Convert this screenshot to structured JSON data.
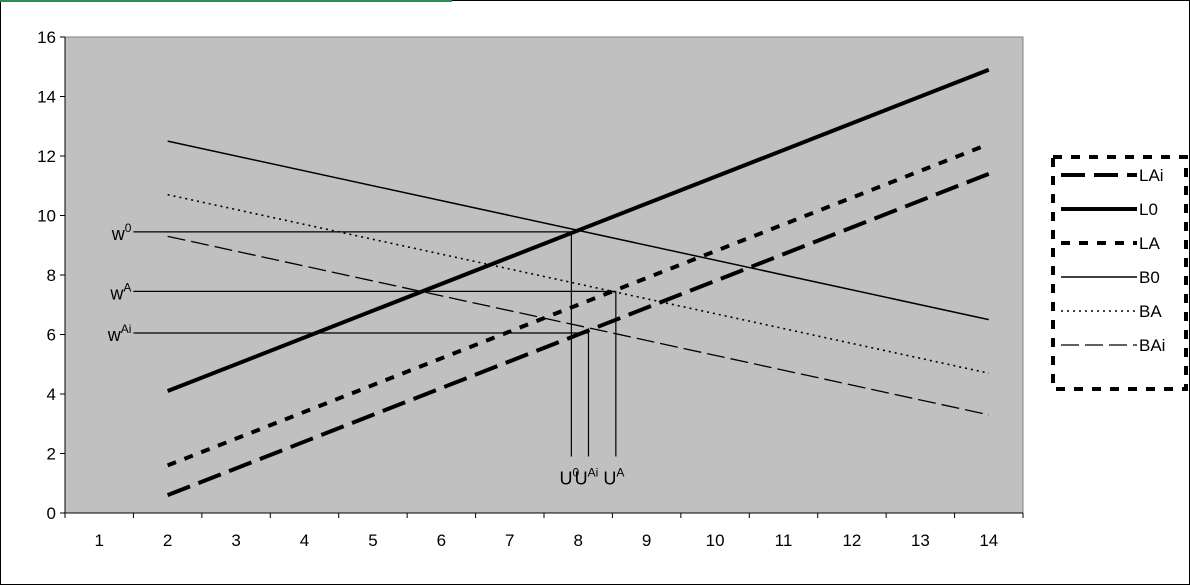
{
  "chart_data": {
    "type": "line",
    "x_categories": [
      "1",
      "2",
      "3",
      "4",
      "5",
      "6",
      "7",
      "8",
      "9",
      "10",
      "11",
      "12",
      "13",
      "14"
    ],
    "xlim": [
      1,
      14
    ],
    "ylim": [
      0,
      16
    ],
    "y_ticks": [
      "0",
      "2",
      "4",
      "6",
      "8",
      "10",
      "12",
      "14",
      "16"
    ],
    "grid": false,
    "plot_background": "#c0c0c0",
    "legend_position": "right",
    "series": [
      {
        "name": "LAi",
        "style": "long-dash-thick",
        "color": "#000000",
        "x": [
          2,
          14
        ],
        "y": [
          0.6,
          11.4
        ]
      },
      {
        "name": "L0",
        "style": "solid-thick",
        "color": "#000000",
        "x": [
          2,
          14
        ],
        "y": [
          4.1,
          14.9
        ]
      },
      {
        "name": "LA",
        "style": "short-dash-thick",
        "color": "#000000",
        "x": [
          2,
          14
        ],
        "y": [
          1.6,
          12.4
        ]
      },
      {
        "name": "B0",
        "style": "solid-thin",
        "color": "#000000",
        "x": [
          2,
          14
        ],
        "y": [
          12.5,
          6.5
        ]
      },
      {
        "name": "BA",
        "style": "dotted",
        "color": "#000000",
        "x": [
          2,
          14
        ],
        "y": [
          10.7,
          4.7
        ]
      },
      {
        "name": "BAi",
        "style": "dashed-thin",
        "color": "#000000",
        "x": [
          2,
          14
        ],
        "y": [
          9.3,
          3.3
        ]
      }
    ],
    "annotations": [
      {
        "label_base": "w",
        "label_sup": "0",
        "kind": "horizontal",
        "y": 9.45,
        "x_from": 1.5,
        "x_to": 7.9
      },
      {
        "label_base": "w",
        "label_sup": "A",
        "kind": "horizontal",
        "y": 7.45,
        "x_from": 1.5,
        "x_to": 8.55
      },
      {
        "label_base": "w",
        "label_sup": "Ai",
        "kind": "horizontal",
        "y": 6.05,
        "x_from": 1.5,
        "x_to": 8.15
      },
      {
        "label_base": "U",
        "label_sup": "0",
        "kind": "vertical",
        "x": 7.9,
        "y_from": 9.45,
        "y_to": 1.9
      },
      {
        "label_base": "U",
        "label_sup": "Ai",
        "kind": "vertical",
        "x": 8.15,
        "y_from": 6.05,
        "y_to": 1.9
      },
      {
        "label_base": "U",
        "label_sup": "A",
        "kind": "vertical",
        "x": 8.55,
        "y_from": 7.45,
        "y_to": 1.9
      }
    ]
  }
}
